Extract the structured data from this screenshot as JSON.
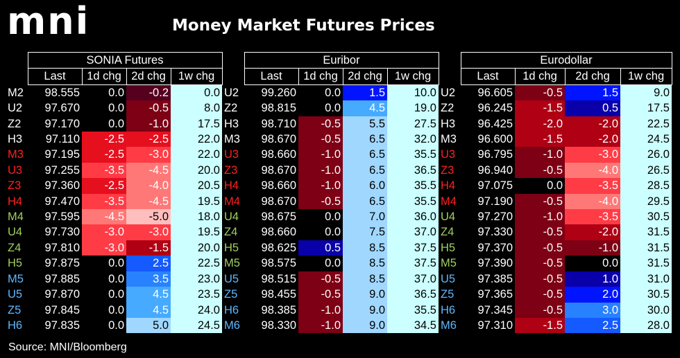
{
  "logo": "mni",
  "title": "Money Market Futures Prices",
  "source": "Source: MNI/Bloomberg",
  "chart_data": {
    "type": "table",
    "groups": [
      "SONIA Futures",
      "Euribor",
      "Eurodollar"
    ],
    "columns": [
      "Last",
      "1d chg",
      "2d chg",
      "1w chg"
    ],
    "colors": {
      "contract_current": "#ffffff",
      "contract_red": "#ff2020",
      "contract_green": "#a0d060",
      "contract_blue": "#60b8ff",
      "weekly_change_bg": "#ccffff"
    },
    "sonia": {
      "contracts": [
        "M2",
        "U2",
        "Z2",
        "H3",
        "M3",
        "U3",
        "Z3",
        "H4",
        "M4",
        "U4",
        "Z4",
        "H5",
        "M5",
        "U5",
        "Z5",
        "H6"
      ],
      "contract_colors": [
        "white",
        "white",
        "white",
        "white",
        "red",
        "red",
        "red",
        "red",
        "green",
        "green",
        "green",
        "green",
        "blue",
        "blue",
        "blue",
        "blue"
      ],
      "last": [
        "98.555",
        "97.670",
        "97.170",
        "97.110",
        "97.195",
        "97.255",
        "97.360",
        "97.470",
        "97.595",
        "97.730",
        "97.810",
        "97.875",
        "97.885",
        "97.870",
        "97.845",
        "97.835"
      ],
      "chg_1d": [
        "0.0",
        "0.0",
        "0.0",
        "-2.5",
        "-2.5",
        "-3.5",
        "-2.5",
        "-3.5",
        "-4.5",
        "-3.0",
        "-3.0",
        "0.0",
        "0.0",
        "0.0",
        "0.0",
        "0.0"
      ],
      "chg_2d": [
        "-0.2",
        "-0.5",
        "-1.0",
        "-2.5",
        "-3.0",
        "-4.5",
        "-4.0",
        "-4.5",
        "-5.0",
        "-3.0",
        "-1.5",
        "2.5",
        "3.5",
        "4.5",
        "4.5",
        "5.0"
      ],
      "chg_1w": [
        "0.0",
        "8.0",
        "17.5",
        "22.0",
        "22.0",
        "20.0",
        "20.5",
        "19.5",
        "18.0",
        "19.5",
        "20.0",
        "22.5",
        "23.0",
        "23.5",
        "24.0",
        "24.5"
      ]
    },
    "euribor": {
      "contracts": [
        "U2",
        "Z2",
        "H3",
        "M3",
        "U3",
        "Z3",
        "H4",
        "M4",
        "U4",
        "Z4",
        "H5",
        "M5",
        "U5",
        "Z5",
        "H6",
        "M6"
      ],
      "contract_colors": [
        "white",
        "white",
        "white",
        "white",
        "red",
        "red",
        "red",
        "red",
        "green",
        "green",
        "green",
        "green",
        "blue",
        "blue",
        "blue",
        "blue"
      ],
      "last": [
        "99.260",
        "98.815",
        "98.710",
        "98.670",
        "98.660",
        "98.670",
        "98.660",
        "98.670",
        "98.675",
        "98.660",
        "98.625",
        "98.575",
        "98.515",
        "98.455",
        "98.385",
        "98.330"
      ],
      "chg_1d": [
        "0.0",
        "0.0",
        "-0.5",
        "-0.5",
        "-1.0",
        "-1.0",
        "-1.0",
        "-0.5",
        "0.0",
        "0.0",
        "0.5",
        "0.0",
        "-0.5",
        "-0.5",
        "-1.0",
        "-1.0"
      ],
      "chg_2d": [
        "1.5",
        "4.5",
        "5.5",
        "6.5",
        "6.5",
        "6.5",
        "6.0",
        "6.5",
        "7.0",
        "7.5",
        "8.5",
        "8.5",
        "8.5",
        "9.0",
        "9.0",
        "9.0"
      ],
      "chg_1w": [
        "10.0",
        "19.0",
        "27.5",
        "32.0",
        "35.5",
        "36.5",
        "35.5",
        "35.5",
        "36.0",
        "37.0",
        "37.5",
        "37.5",
        "37.0",
        "36.5",
        "35.5",
        "34.5"
      ]
    },
    "eurodollar": {
      "contracts": [
        "U2",
        "Z2",
        "H3",
        "M3",
        "U3",
        "Z3",
        "H4",
        "M4",
        "U4",
        "Z4",
        "H5",
        "M5",
        "U5",
        "Z5",
        "H6",
        "M6"
      ],
      "contract_colors": [
        "white",
        "white",
        "white",
        "white",
        "red",
        "red",
        "red",
        "red",
        "green",
        "green",
        "green",
        "green",
        "blue",
        "blue",
        "blue",
        "blue"
      ],
      "last": [
        "96.605",
        "96.245",
        "96.425",
        "96.600",
        "96.795",
        "96.940",
        "97.075",
        "97.190",
        "97.270",
        "97.330",
        "97.370",
        "97.390",
        "97.385",
        "97.365",
        "97.345",
        "97.310"
      ],
      "chg_1d": [
        "-0.5",
        "-1.5",
        "-2.0",
        "-1.5",
        "-1.0",
        "-0.5",
        "0.0",
        "-0.5",
        "-1.0",
        "-0.5",
        "-0.5",
        "-0.5",
        "-0.5",
        "-0.5",
        "-0.5",
        "-1.5"
      ],
      "chg_2d": [
        "1.5",
        "0.5",
        "-2.0",
        "-2.0",
        "-3.0",
        "-4.0",
        "-3.5",
        "-4.0",
        "-3.5",
        "-2.0",
        "-1.0",
        "0.0",
        "1.0",
        "2.0",
        "3.0",
        "2.5"
      ],
      "chg_1w": [
        "9.0",
        "17.5",
        "22.5",
        "24.5",
        "26.0",
        "26.5",
        "28.5",
        "29.5",
        "30.5",
        "31.5",
        "31.5",
        "31.5",
        "31.0",
        "30.5",
        "30.0",
        "28.0"
      ]
    }
  }
}
